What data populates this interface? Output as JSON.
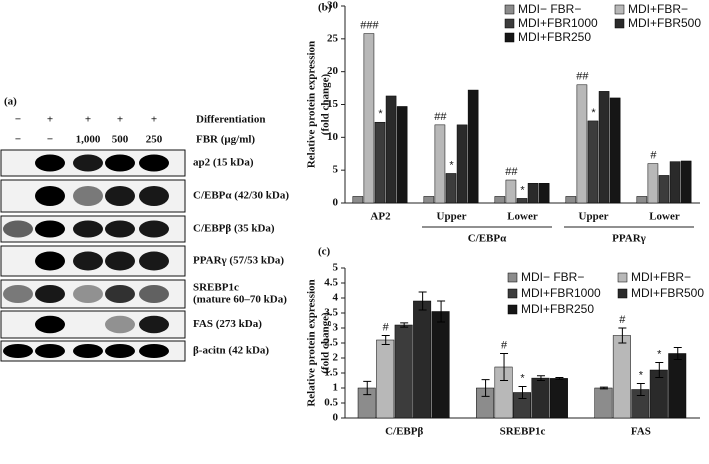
{
  "panel_a": {
    "panel_label": "(a)",
    "rows": [
      {
        "label": "Differentiation",
        "lanes": [
          "−",
          "+",
          "+",
          "+",
          "+"
        ]
      },
      {
        "label": "FBR (μg/ml)",
        "lanes": [
          "−",
          "−",
          "1,000",
          "500",
          "250"
        ]
      }
    ],
    "bands": [
      [
        "ap2 (15 kDa)"
      ],
      [
        "C/EBPα (42/30 kDa)"
      ],
      [
        "C/EBPβ (35 kDa)"
      ],
      [
        "PPARγ (57/53 kDa)"
      ],
      [
        "SREBP1c",
        "(mature 60–70 kDa)"
      ],
      [
        "FAS (273 kDa)"
      ],
      [
        "β-acitn (42 kDa)"
      ]
    ]
  },
  "chart_data": [
    {
      "type": "bar",
      "panel_label": "(b)",
      "ylabel": [
        "Relative protein expression",
        "(fold change)"
      ],
      "categories": [
        "AP2",
        "Upper",
        "Lower",
        "Upper",
        "Lower"
      ],
      "group_labels": [
        null,
        "C/EBPα",
        null,
        "PPARγ",
        null
      ],
      "ylim": [
        0,
        30
      ],
      "yticks": [
        0,
        5,
        10,
        15,
        20,
        25,
        30
      ],
      "series": [
        {
          "name": "MDI− FBR−",
          "color": "#8c8c8c",
          "values": [
            1,
            1,
            1,
            1,
            1
          ]
        },
        {
          "name": "MDI+FBR−",
          "color": "#b8b8b8",
          "values": [
            25.8,
            11.9,
            3.5,
            18,
            6
          ],
          "annotations": [
            "###",
            "##",
            "##",
            "##",
            "#"
          ]
        },
        {
          "name": "MDI+FBR1000",
          "color": "#3c3c3c",
          "values": [
            12.3,
            4.5,
            0.7,
            12.5,
            4.2
          ],
          "annotations": [
            "*",
            "*",
            "*",
            "*",
            null
          ]
        },
        {
          "name": "MDI+FBR500",
          "color": "#2a2a2a",
          "values": [
            16.3,
            11.9,
            3,
            17,
            6.3
          ]
        },
        {
          "name": "MDI+FBR250",
          "color": "#161616",
          "values": [
            14.7,
            17.2,
            3,
            16,
            6.4
          ]
        }
      ]
    },
    {
      "type": "bar",
      "panel_label": "(c)",
      "ylabel": [
        "Relative protein expression",
        "(fold change)"
      ],
      "categories": [
        "C/EBPβ",
        "SREBP1c",
        "FAS"
      ],
      "ylim": [
        0,
        5
      ],
      "yticks": [
        0,
        0.5,
        1,
        1.5,
        2,
        2.5,
        3,
        3.5,
        4,
        4.5,
        5
      ],
      "series": [
        {
          "name": "MDI− FBR−",
          "color": "#8c8c8c",
          "values": [
            1,
            1,
            1
          ],
          "errors": [
            0.22,
            0.28,
            0.03
          ]
        },
        {
          "name": "MDI+FBR−",
          "color": "#b8b8b8",
          "values": [
            2.6,
            1.7,
            2.75
          ],
          "errors": [
            0.15,
            0.45,
            0.25
          ],
          "annotations": [
            "#",
            "#",
            "#"
          ]
        },
        {
          "name": "MDI+FBR1000",
          "color": "#3c3c3c",
          "values": [
            3.1,
            0.85,
            0.95
          ],
          "errors": [
            0.07,
            0.2,
            0.2
          ],
          "annotations": [
            null,
            "*",
            "*"
          ]
        },
        {
          "name": "MDI+FBR500",
          "color": "#2a2a2a",
          "values": [
            3.9,
            1.33,
            1.6
          ],
          "errors": [
            0.3,
            0.08,
            0.25
          ],
          "annotations": [
            null,
            null,
            "*"
          ]
        },
        {
          "name": "MDI+FBR250",
          "color": "#161616",
          "values": [
            3.55,
            1.32,
            2.15
          ],
          "errors": [
            0.35,
            0.03,
            0.2
          ]
        }
      ]
    }
  ]
}
